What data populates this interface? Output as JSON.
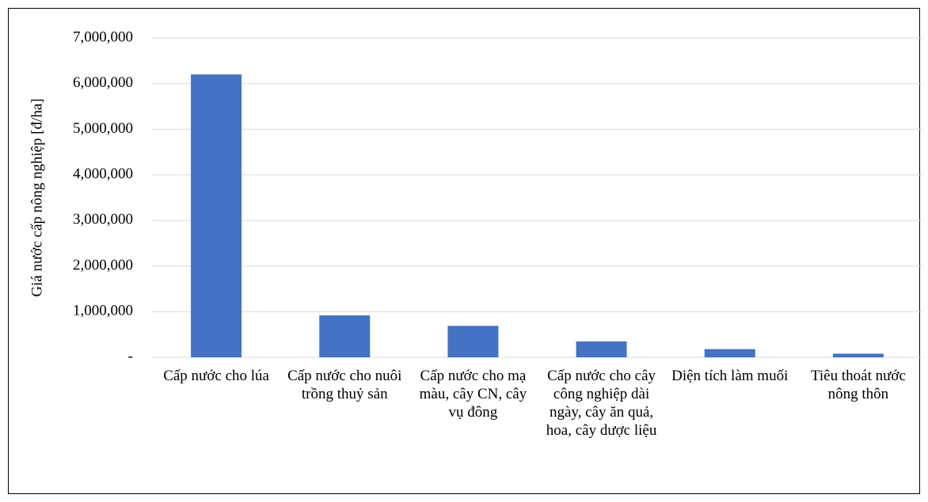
{
  "chart_data": {
    "type": "bar",
    "y_label": "Giá nước cấp nông nghiệp [đ/ha]",
    "categories": [
      "Cấp nước cho lúa",
      "Cấp nước cho nuôi trồng thuỷ sản",
      "Cấp nước cho mạ màu, cây CN, cây vụ đông",
      "Cấp nước cho cây công nghiệp dài ngày, cây ăn quả, hoa, cây dược liệu",
      "Diện tích làm muối",
      "Tiêu thoát nước nông thôn"
    ],
    "values": [
      6200000,
      920000,
      690000,
      350000,
      180000,
      80000
    ],
    "color": "#4472c4",
    "ylim": [
      0,
      7000000
    ],
    "yticks": [
      {
        "value": 0,
        "label": "-"
      },
      {
        "value": 1000000,
        "label": "1,000,000"
      },
      {
        "value": 2000000,
        "label": "2,000,000"
      },
      {
        "value": 3000000,
        "label": "3,000,000"
      },
      {
        "value": 4000000,
        "label": "4,000,000"
      },
      {
        "value": 5000000,
        "label": "5,000,000"
      },
      {
        "value": 6000000,
        "label": "6,000,000"
      },
      {
        "value": 7000000,
        "label": "7,000,000"
      }
    ],
    "grid": true
  }
}
